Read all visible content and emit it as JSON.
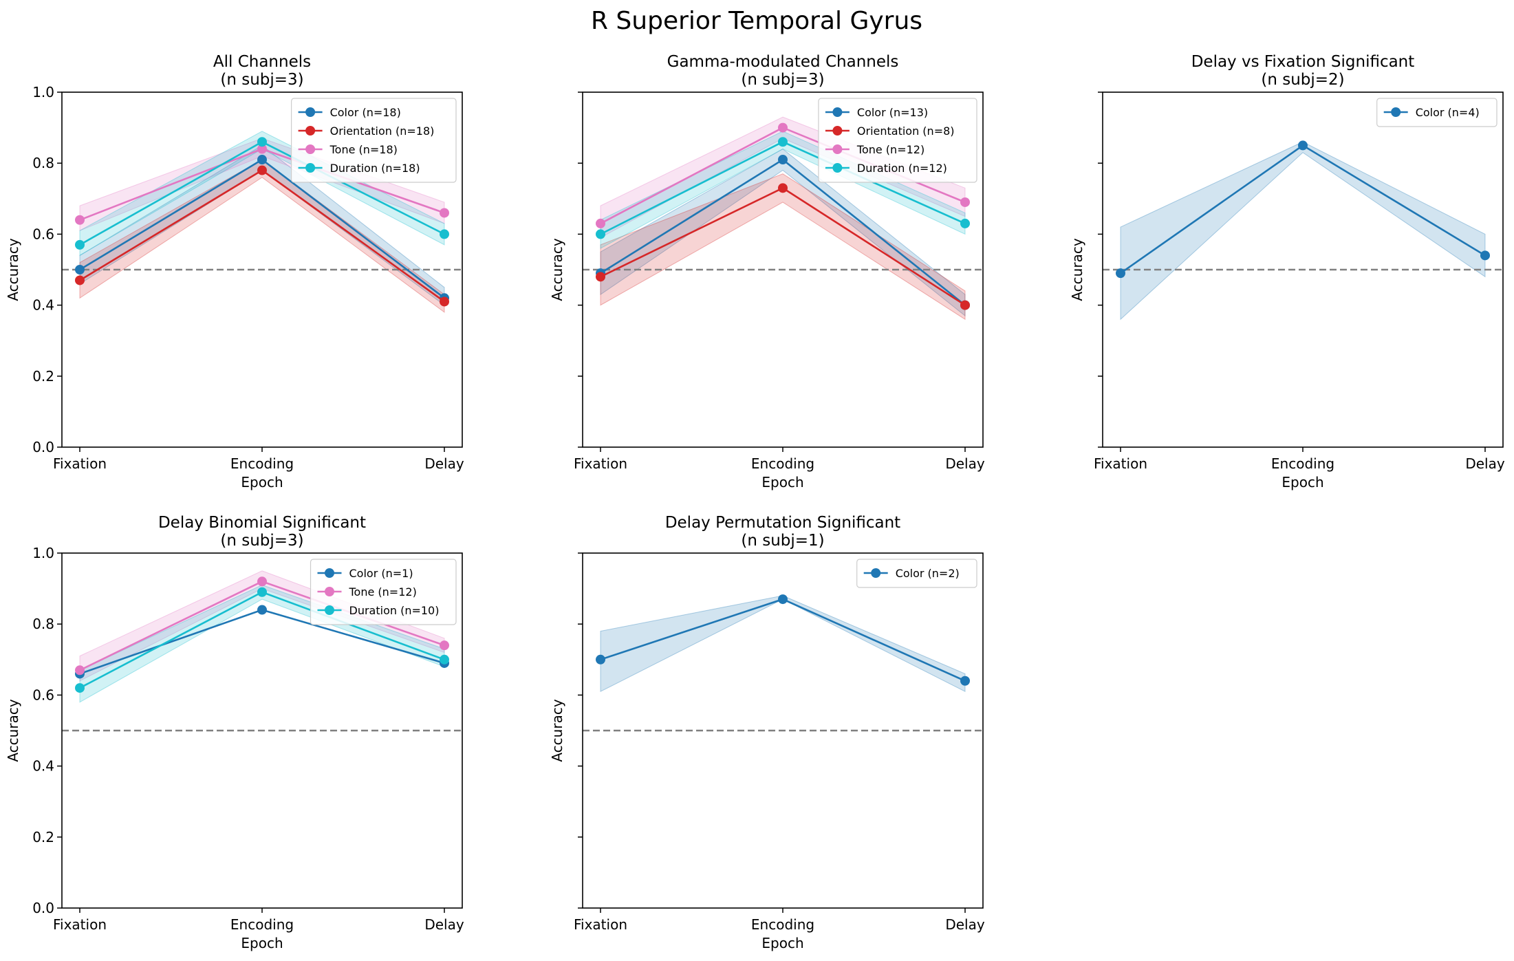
{
  "figure_title": "R Superior Temporal Gyrus",
  "series_colors": {
    "Color": "#1f77b4",
    "Orientation": "#d62728",
    "Tone": "#e377c2",
    "Duration": "#17becf"
  },
  "chance_line": {
    "value": 0.5,
    "color": "#808080",
    "style": "dashed"
  },
  "chart_data": [
    {
      "type": "line",
      "title": "All Channels",
      "subtitle": "(n subj=3)",
      "categories": [
        "Fixation",
        "Encoding",
        "Delay"
      ],
      "xlabel": "Epoch",
      "ylabel": "Accuracy",
      "ylim": [
        0,
        1.0
      ],
      "yticks": [
        "0.0",
        "0.2",
        "0.4",
        "0.6",
        "0.8",
        "1.0"
      ],
      "show_yticklabels": true,
      "legend_position": "top-right",
      "series": [
        {
          "name": "Color (n=18)",
          "key": "Color",
          "values": [
            0.5,
            0.81,
            0.42
          ],
          "lower": [
            0.46,
            0.78,
            0.4
          ],
          "upper": [
            0.54,
            0.85,
            0.45
          ]
        },
        {
          "name": "Orientation (n=18)",
          "key": "Orientation",
          "values": [
            0.47,
            0.78,
            0.41
          ],
          "lower": [
            0.42,
            0.76,
            0.38
          ],
          "upper": [
            0.52,
            0.81,
            0.43
          ]
        },
        {
          "name": "Tone (n=18)",
          "key": "Tone",
          "values": [
            0.64,
            0.84,
            0.66
          ],
          "lower": [
            0.61,
            0.82,
            0.63
          ],
          "upper": [
            0.68,
            0.87,
            0.69
          ]
        },
        {
          "name": "Duration (n=18)",
          "key": "Duration",
          "values": [
            0.57,
            0.86,
            0.6
          ],
          "lower": [
            0.54,
            0.84,
            0.57
          ],
          "upper": [
            0.61,
            0.89,
            0.63
          ]
        }
      ]
    },
    {
      "type": "line",
      "title": "Gamma-modulated Channels",
      "subtitle": "(n subj=3)",
      "categories": [
        "Fixation",
        "Encoding",
        "Delay"
      ],
      "xlabel": "Epoch",
      "ylabel": "Accuracy",
      "ylim": [
        0,
        1.0
      ],
      "yticks": [
        "0.0",
        "0.2",
        "0.4",
        "0.6",
        "0.8",
        "1.0"
      ],
      "show_yticklabels": false,
      "legend_position": "top-right",
      "series": [
        {
          "name": "Color (n=13)",
          "key": "Color",
          "values": [
            0.49,
            0.81,
            0.4
          ],
          "lower": [
            0.43,
            0.78,
            0.37
          ],
          "upper": [
            0.55,
            0.84,
            0.43
          ]
        },
        {
          "name": "Orientation (n=8)",
          "key": "Orientation",
          "values": [
            0.48,
            0.73,
            0.4
          ],
          "lower": [
            0.4,
            0.69,
            0.36
          ],
          "upper": [
            0.57,
            0.77,
            0.44
          ]
        },
        {
          "name": "Tone (n=12)",
          "key": "Tone",
          "values": [
            0.63,
            0.9,
            0.69
          ],
          "lower": [
            0.59,
            0.87,
            0.65
          ],
          "upper": [
            0.68,
            0.93,
            0.73
          ]
        },
        {
          "name": "Duration (n=12)",
          "key": "Duration",
          "values": [
            0.6,
            0.86,
            0.63
          ],
          "lower": [
            0.56,
            0.84,
            0.6
          ],
          "upper": [
            0.64,
            0.89,
            0.66
          ]
        }
      ]
    },
    {
      "type": "line",
      "title": "Delay vs Fixation Significant",
      "subtitle": "(n subj=2)",
      "categories": [
        "Fixation",
        "Encoding",
        "Delay"
      ],
      "xlabel": "Epoch",
      "ylabel": "Accuracy",
      "ylim": [
        0,
        1.0
      ],
      "yticks": [
        "0.0",
        "0.2",
        "0.4",
        "0.6",
        "0.8",
        "1.0"
      ],
      "show_yticklabels": false,
      "legend_position": "top-right",
      "series": [
        {
          "name": "Color (n=4)",
          "key": "Color",
          "values": [
            0.49,
            0.85,
            0.54
          ],
          "lower": [
            0.36,
            0.83,
            0.48
          ],
          "upper": [
            0.62,
            0.86,
            0.6
          ]
        }
      ]
    },
    {
      "type": "line",
      "title": "Delay Binomial Significant",
      "subtitle": "(n subj=3)",
      "categories": [
        "Fixation",
        "Encoding",
        "Delay"
      ],
      "xlabel": "Epoch",
      "ylabel": "Accuracy",
      "ylim": [
        0,
        1.0
      ],
      "yticks": [
        "0.0",
        "0.2",
        "0.4",
        "0.6",
        "0.8",
        "1.0"
      ],
      "show_yticklabels": true,
      "legend_position": "top-right",
      "series": [
        {
          "name": "Color (n=1)",
          "key": "Color",
          "values": [
            0.66,
            0.84,
            0.69
          ],
          "lower": null,
          "upper": null
        },
        {
          "name": "Tone (n=12)",
          "key": "Tone",
          "values": [
            0.67,
            0.92,
            0.74
          ],
          "lower": [
            0.64,
            0.9,
            0.72
          ],
          "upper": [
            0.71,
            0.95,
            0.76
          ]
        },
        {
          "name": "Duration (n=10)",
          "key": "Duration",
          "values": [
            0.62,
            0.89,
            0.7
          ],
          "lower": [
            0.58,
            0.87,
            0.68
          ],
          "upper": [
            0.67,
            0.91,
            0.73
          ]
        }
      ]
    },
    {
      "type": "line",
      "title": "Delay Permutation Significant",
      "subtitle": "(n subj=1)",
      "categories": [
        "Fixation",
        "Encoding",
        "Delay"
      ],
      "xlabel": "Epoch",
      "ylabel": "Accuracy",
      "ylim": [
        0,
        1.0
      ],
      "yticks": [
        "0.0",
        "0.2",
        "0.4",
        "0.6",
        "0.8",
        "1.0"
      ],
      "show_yticklabels": false,
      "legend_position": "top-right",
      "series": [
        {
          "name": "Color (n=2)",
          "key": "Color",
          "values": [
            0.7,
            0.87,
            0.64
          ],
          "lower": [
            0.61,
            0.87,
            0.61
          ],
          "upper": [
            0.78,
            0.88,
            0.66
          ]
        }
      ]
    }
  ]
}
